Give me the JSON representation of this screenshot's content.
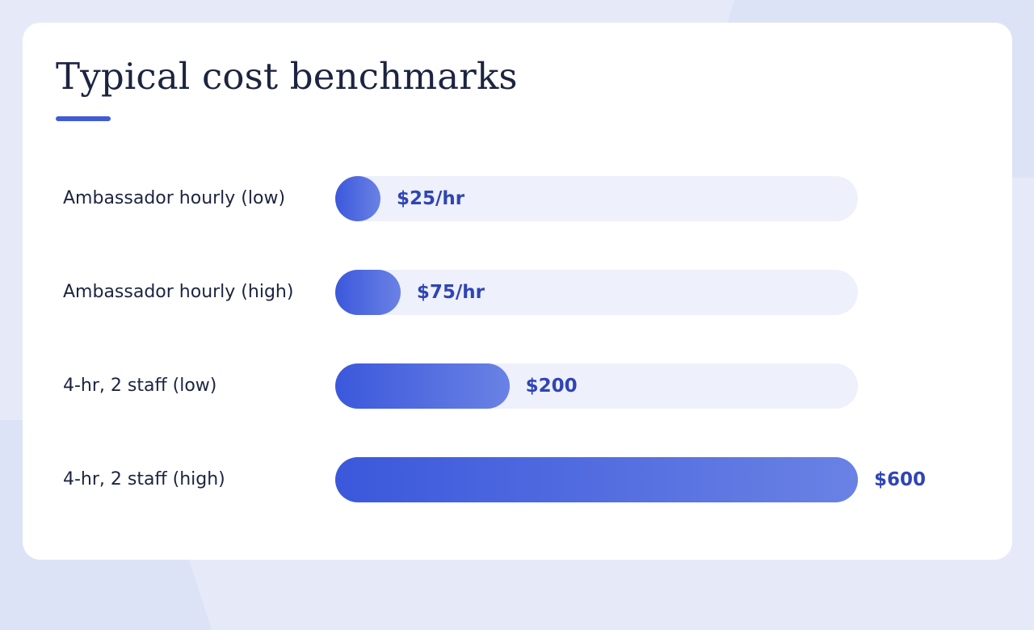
{
  "title": "Typical cost benchmarks",
  "colors": {
    "accent": "#3f5bd8",
    "bar_start": "#3b58dc",
    "bar_end": "#6a82e4",
    "track": "#eef0fb",
    "value_text": "#2f45b4",
    "label_text": "#1c2440"
  },
  "chart_data": {
    "type": "bar",
    "orientation": "horizontal",
    "title": "Typical cost benchmarks",
    "xlim": [
      0,
      600
    ],
    "grid": false,
    "categories": [
      "Ambassador hourly (low)",
      "Ambassador hourly (high)",
      "4-hr, 2 staff (low)",
      "4-hr, 2 staff (high)"
    ],
    "values": [
      25,
      75,
      200,
      600
    ],
    "value_labels": [
      "$25/hr",
      "$75/hr",
      "$200",
      "$600"
    ]
  }
}
